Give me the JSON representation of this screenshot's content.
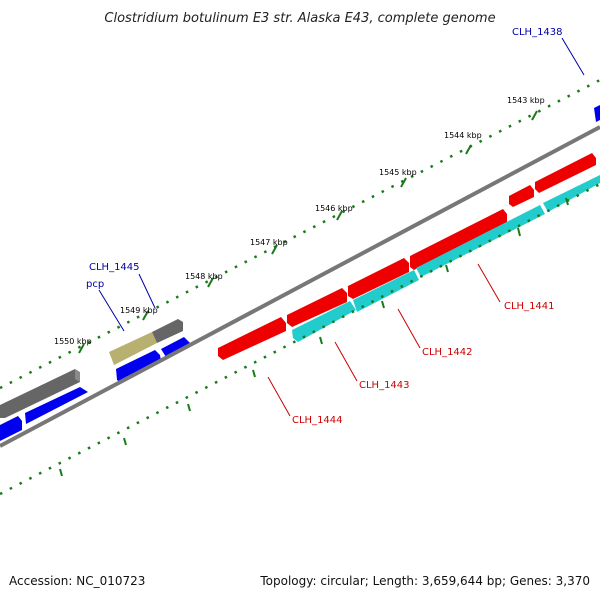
{
  "title": "Clostridium botulinum E3 str. Alaska E43, complete genome",
  "ticks": [
    {
      "label": "1543 kbp"
    },
    {
      "label": "1544 kbp"
    },
    {
      "label": "1545 kbp"
    },
    {
      "label": "1546 kbp"
    },
    {
      "label": "1547 kbp"
    },
    {
      "label": "1548 kbp"
    },
    {
      "label": "1549 kbp"
    },
    {
      "label": "1550 kbp"
    }
  ],
  "gene_labels": [
    {
      "text": "CLH_1438",
      "color": "#0000aa"
    },
    {
      "text": "CLH_1445",
      "color": "#0000aa"
    },
    {
      "text": "pcp",
      "color": "#0000aa"
    },
    {
      "text": "CLH_1441",
      "color": "#cc0000"
    },
    {
      "text": "CLH_1442",
      "color": "#cc0000"
    },
    {
      "text": "CLH_1443",
      "color": "#cc0000"
    },
    {
      "text": "CLH_1444",
      "color": "#cc0000"
    }
  ],
  "legend_colors": {
    "backbone": "#777777",
    "forward_strand_blue": "#0000ee",
    "forward_strand_gray": "#666666",
    "highlight_gene": "#b8b070",
    "reverse_strand_red": "#ee0000",
    "reverse_strand_cyan": "#22cccc",
    "tick_green": "#1a7a1a"
  },
  "footer": {
    "accession": "Accession: NC_010723",
    "stats": "Topology: circular; Length: 3,659,644 bp; Genes: 3,370"
  }
}
